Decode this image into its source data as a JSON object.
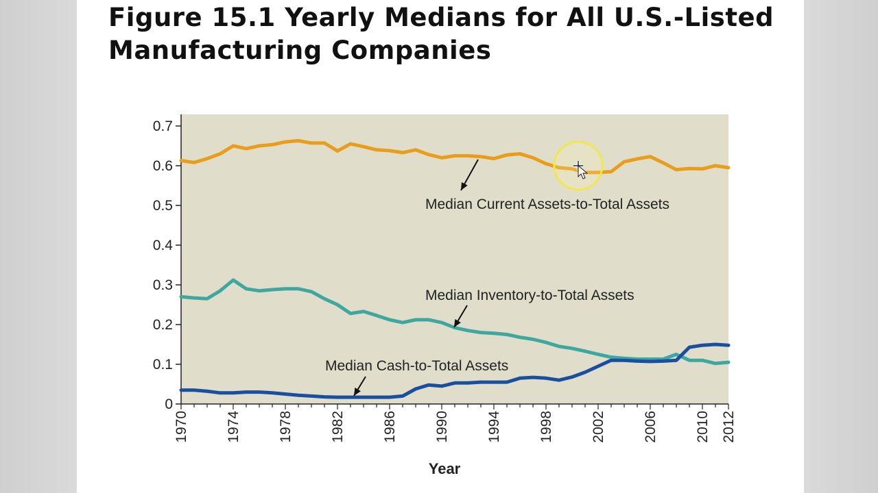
{
  "slide": {
    "title": "Figure 15.1 Yearly Medians for All U.S.-Listed Manufacturing Companies"
  },
  "chart_data": {
    "type": "line",
    "title": "",
    "xlabel": "Year",
    "ylabel": "",
    "xlim": [
      1970,
      2012
    ],
    "ylim": [
      0,
      0.72
    ],
    "grid": false,
    "plot_background": "#e0ddcb",
    "x_ticks": [
      "1970",
      "1974",
      "1978",
      "1982",
      "1986",
      "1990",
      "1994",
      "1998",
      "2002",
      "2006",
      "2010",
      "2012"
    ],
    "y_ticks": [
      "0",
      "0.1",
      "0.2",
      "0.3",
      "0.4",
      "0.5",
      "0.6",
      "0.7"
    ],
    "x": [
      1970,
      1971,
      1972,
      1973,
      1974,
      1975,
      1976,
      1977,
      1978,
      1979,
      1980,
      1981,
      1982,
      1983,
      1984,
      1985,
      1986,
      1987,
      1988,
      1989,
      1990,
      1991,
      1992,
      1993,
      1994,
      1995,
      1996,
      1997,
      1998,
      1999,
      2000,
      2001,
      2002,
      2003,
      2004,
      2005,
      2006,
      2007,
      2008,
      2009,
      2010,
      2011,
      2012
    ],
    "series": [
      {
        "color": "#e89e1b",
        "values": [
          0.613,
          0.608,
          0.618,
          0.63,
          0.65,
          0.643,
          0.65,
          0.653,
          0.66,
          0.663,
          0.657,
          0.657,
          0.637,
          0.655,
          0.648,
          0.64,
          0.638,
          0.633,
          0.64,
          0.628,
          0.62,
          0.625,
          0.625,
          0.623,
          0.618,
          0.627,
          0.63,
          0.62,
          0.605,
          0.595,
          0.592,
          0.583,
          0.583,
          0.585,
          0.61,
          0.617,
          0.623,
          0.607,
          0.59,
          0.593,
          0.592,
          0.6,
          0.595
        ]
      },
      {
        "color": "#3ea89e",
        "values": [
          0.27,
          0.267,
          0.265,
          0.285,
          0.312,
          0.29,
          0.285,
          0.288,
          0.29,
          0.29,
          0.283,
          0.265,
          0.25,
          0.228,
          0.233,
          0.223,
          0.212,
          0.205,
          0.212,
          0.212,
          0.205,
          0.192,
          0.185,
          0.18,
          0.178,
          0.175,
          0.168,
          0.163,
          0.155,
          0.145,
          0.14,
          0.133,
          0.125,
          0.118,
          0.115,
          0.113,
          0.113,
          0.113,
          0.125,
          0.11,
          0.11,
          0.102,
          0.105
        ]
      },
      {
        "color": "#1a4fa0",
        "values": [
          0.035,
          0.035,
          0.032,
          0.028,
          0.028,
          0.03,
          0.03,
          0.028,
          0.025,
          0.022,
          0.02,
          0.018,
          0.017,
          0.017,
          0.017,
          0.017,
          0.017,
          0.02,
          0.038,
          0.048,
          0.045,
          0.053,
          0.053,
          0.055,
          0.055,
          0.055,
          0.065,
          0.067,
          0.065,
          0.06,
          0.068,
          0.08,
          0.095,
          0.11,
          0.11,
          0.108,
          0.107,
          0.108,
          0.11,
          0.143,
          0.148,
          0.15,
          0.148
        ]
      }
    ],
    "annotations": [
      {
        "text": "Median Current Assets-to-Total Assets",
        "series": 0,
        "x": 1993,
        "y": 0.625
      },
      {
        "text": "Median Inventory-to-Total Assets",
        "series": 1,
        "x": 1991,
        "y": 0.192
      },
      {
        "text": "Median Cash-to-Total Assets",
        "series": 2,
        "x": 1983.5,
        "y": 0.017
      }
    ]
  }
}
